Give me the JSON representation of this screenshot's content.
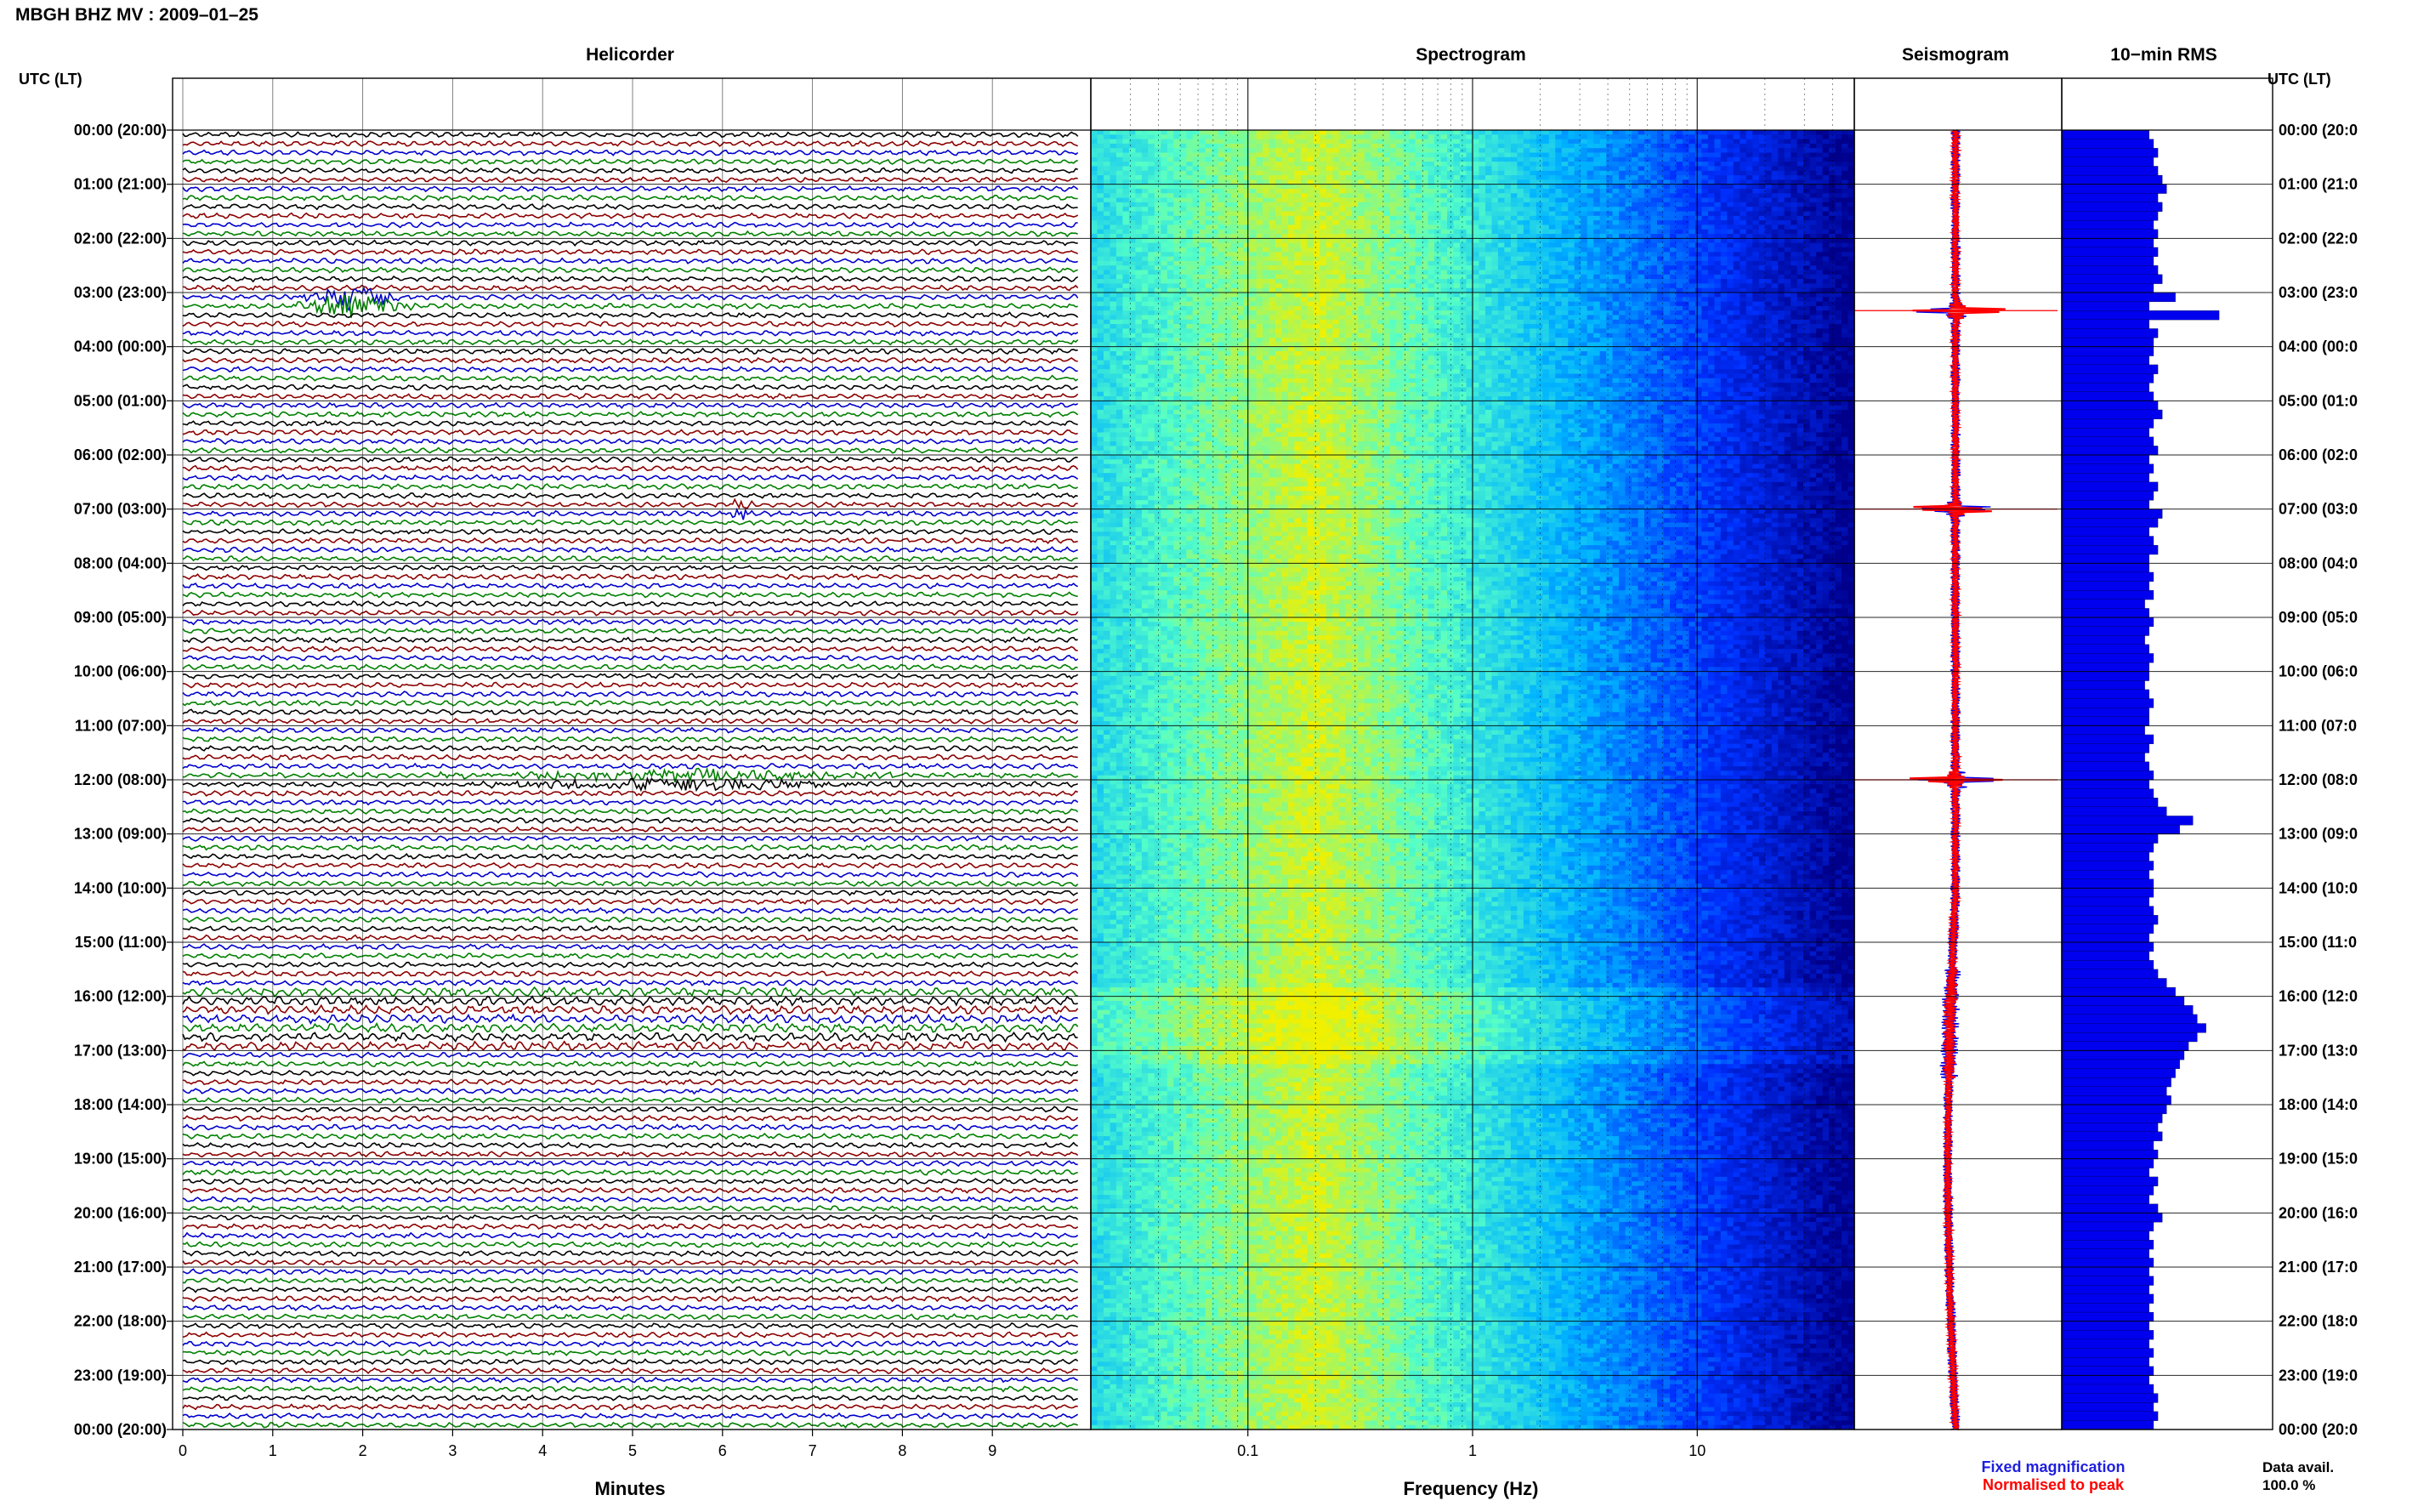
{
  "header": {
    "title": "MBGH BHZ MV : 2009–01–25"
  },
  "left_axis_label": "UTC (LT)",
  "right_axis_label": "UTC (LT)",
  "time_labels": [
    "00:00 (20:00)",
    "01:00 (21:00)",
    "02:00 (22:00)",
    "03:00 (23:00)",
    "04:00 (00:00)",
    "05:00 (01:00)",
    "06:00 (02:00)",
    "07:00 (03:00)",
    "08:00 (04:00)",
    "09:00 (05:00)",
    "10:00 (06:00)",
    "11:00 (07:00)",
    "12:00 (08:00)",
    "13:00 (09:00)",
    "14:00 (10:00)",
    "15:00 (11:00)",
    "16:00 (12:00)",
    "17:00 (13:00)",
    "18:00 (14:00)",
    "19:00 (15:00)",
    "20:00 (16:00)",
    "21:00 (17:00)",
    "22:00 (18:00)",
    "23:00 (19:00)",
    "00:00 (20:00)"
  ],
  "right_time_labels": [
    "00:00 (20:0",
    "01:00 (21:0",
    "02:00 (22:0",
    "03:00 (23:0",
    "04:00 (00:0",
    "05:00 (01:0",
    "06:00 (02:0",
    "07:00 (03:0",
    "08:00 (04:0",
    "09:00 (05:0",
    "10:00 (06:0",
    "11:00 (07:0",
    "12:00 (08:0",
    "13:00 (09:0",
    "14:00 (10:0",
    "15:00 (11:0",
    "16:00 (12:0",
    "17:00 (13:0",
    "18:00 (14:0",
    "19:00 (15:0",
    "20:00 (16:0",
    "21:00 (17:0",
    "22:00 (18:0",
    "23:00 (19:0",
    "00:00 (20:0"
  ],
  "legend": {
    "fixed": {
      "label": "Fixed magnification",
      "color": "#1f1fe0"
    },
    "normalised": {
      "label": "Normalised to peak",
      "color": "#ff0000"
    }
  },
  "data_avail": {
    "label": "Data avail.",
    "value": "100.0 %"
  },
  "colors": {
    "trace_cycle": [
      "#000000",
      "#8b0000",
      "#0000cc",
      "#008000"
    ],
    "rms_bar": "#0000ee",
    "seis_fixed": "#0000ee",
    "seis_norm": "#ff0000",
    "grid": "#000000"
  },
  "chart_data": [
    {
      "type": "line",
      "panel": "helicorder",
      "title": "Helicorder",
      "xlabel": "Minutes",
      "x_ticks": [
        "0",
        "1",
        "2",
        "3",
        "4",
        "5",
        "6",
        "7",
        "8",
        "9"
      ],
      "xlim": [
        0,
        10
      ],
      "rows_per_hour": 6,
      "trace_count": 144,
      "events": [
        {
          "time": "03:10",
          "minute_start": 1.2,
          "minute_end": 2.6,
          "amplitude": 3.0,
          "color": "#000000"
        },
        {
          "time": "07:00",
          "minute_start": 6.0,
          "minute_end": 6.4,
          "amplitude": 1.6,
          "color": "#8b0000"
        },
        {
          "time": "12:00",
          "minute_start": 2.8,
          "minute_end": 8.3,
          "amplitude": 1.4,
          "color": "#000000"
        }
      ],
      "high_noise_band": [
        "15:50",
        "17:00"
      ]
    },
    {
      "type": "heatmap",
      "panel": "spectrogram",
      "title": "Spectrogram",
      "xlabel": "Frequency (Hz)",
      "x_scale": "log",
      "xlim": [
        0.02,
        50
      ],
      "x_ticks": [
        "0.1",
        "1",
        "10"
      ],
      "colormap": [
        "#00008b",
        "#0030ff",
        "#00b4ff",
        "#55ffc8",
        "#f0f000"
      ],
      "dominant_frequency_hz": 0.2
    },
    {
      "type": "line",
      "panel": "seismogram",
      "title": "Seismogram",
      "series": [
        {
          "name": "Fixed magnification",
          "color": "#1f1fe0"
        },
        {
          "name": "Normalised to peak",
          "color": "#ff0000"
        }
      ],
      "spikes": [
        "03:20",
        "07:00",
        "12:00"
      ]
    },
    {
      "type": "bar",
      "panel": "rms",
      "title": "10−min RMS",
      "orientation": "horizontal",
      "values": [
        1.0,
        1.05,
        1.1,
        1.05,
        1.1,
        1.15,
        1.2,
        1.1,
        1.15,
        1.1,
        1.05,
        1.1,
        1.05,
        1.1,
        1.05,
        1.1,
        1.15,
        1.05,
        1.3,
        1.0,
        1.8,
        1.0,
        1.1,
        1.05,
        1.05,
        1.0,
        1.1,
        1.05,
        1.0,
        1.05,
        1.1,
        1.15,
        1.05,
        1.0,
        1.05,
        1.1,
        1.0,
        1.05,
        1.0,
        1.1,
        1.05,
        1.0,
        1.15,
        1.1,
        1.0,
        1.05,
        1.1,
        1.0,
        1.0,
        1.05,
        1.0,
        1.05,
        0.95,
        1.0,
        1.05,
        1.0,
        0.95,
        1.0,
        1.05,
        1.0,
        1.0,
        0.95,
        1.0,
        1.05,
        1.0,
        1.0,
        0.95,
        1.05,
        1.0,
        0.95,
        1.0,
        1.05,
        1.0,
        1.05,
        1.1,
        1.2,
        1.5,
        1.35,
        1.1,
        1.05,
        1.0,
        1.05,
        1.0,
        1.05,
        1.05,
        1.0,
        1.05,
        1.1,
        1.05,
        1.0,
        1.05,
        1.0,
        1.05,
        1.1,
        1.2,
        1.3,
        1.4,
        1.5,
        1.55,
        1.65,
        1.55,
        1.45,
        1.4,
        1.35,
        1.3,
        1.25,
        1.2,
        1.25,
        1.2,
        1.15,
        1.1,
        1.15,
        1.05,
        1.1,
        1.05,
        1.0,
        1.1,
        1.05,
        1.0,
        1.1,
        1.15,
        1.05,
        1.0,
        1.05,
        1.0,
        1.05,
        1.0,
        1.05,
        1.0,
        1.05,
        1.0,
        1.05,
        1.0,
        1.05,
        1.0,
        1.05,
        1.0,
        1.05,
        1.0,
        1.05,
        1.1,
        1.05,
        1.1,
        1.05
      ]
    }
  ]
}
